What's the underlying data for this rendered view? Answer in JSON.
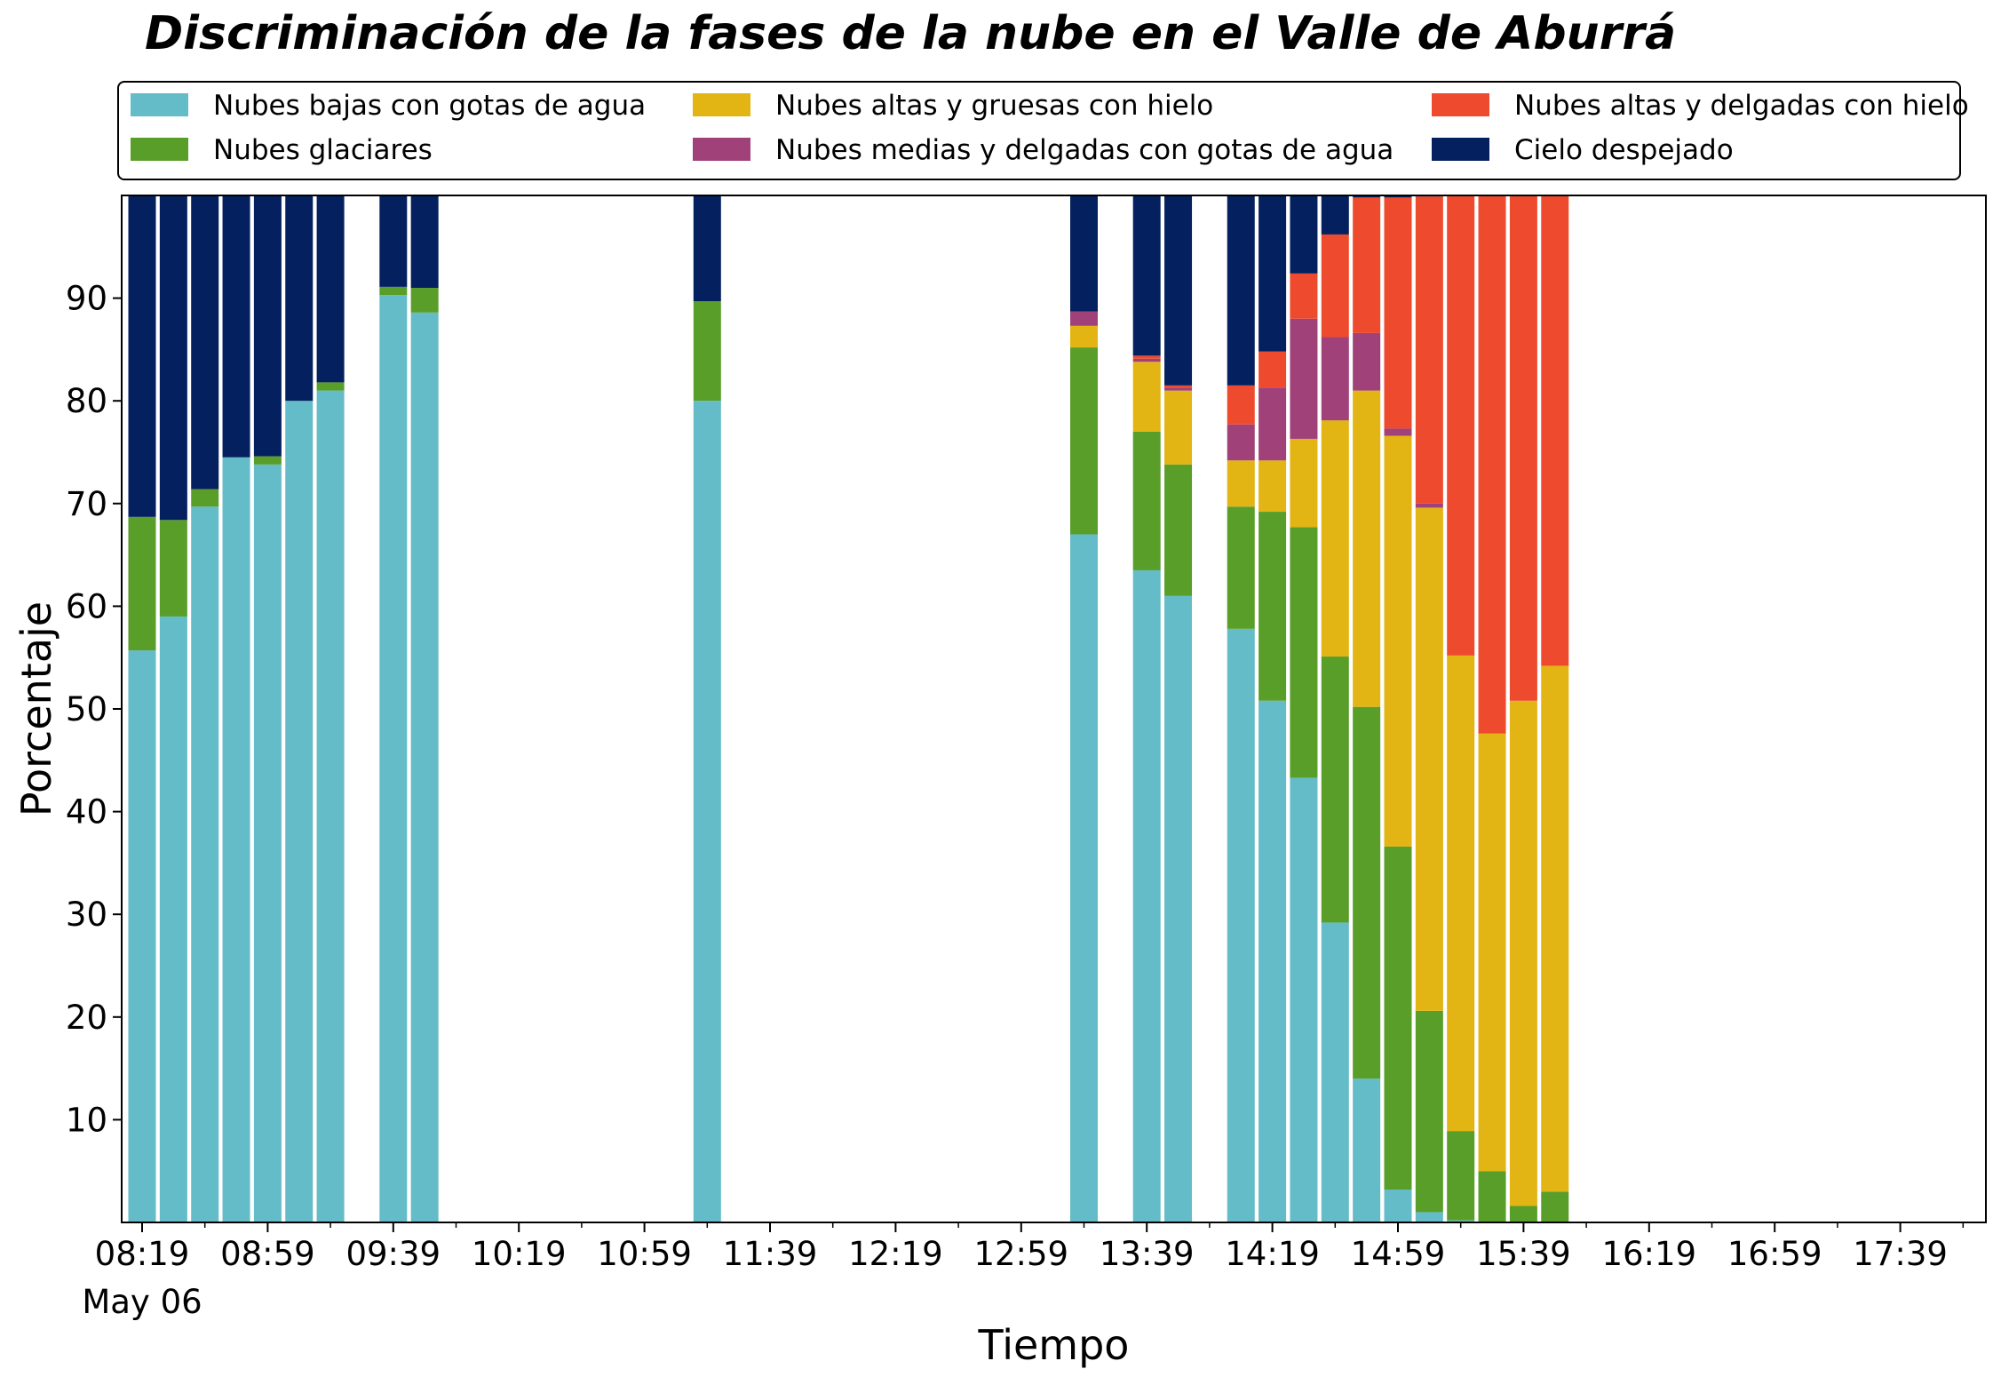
{
  "chart_data": {
    "type": "bar",
    "stacked": true,
    "title": "Discriminación de la fases de la nube en el Valle de Aburrá",
    "xlabel": "Tiempo",
    "ylabel": "Porcentaje",
    "ylim": [
      0,
      100
    ],
    "y_ticks": [
      10,
      20,
      30,
      40,
      50,
      60,
      70,
      80,
      90
    ],
    "x_ticks": [
      "08:19",
      "08:59",
      "09:39",
      "10:19",
      "10:59",
      "11:39",
      "12:19",
      "12:59",
      "13:39",
      "14:19",
      "14:59",
      "15:39",
      "16:19",
      "16:59",
      "17:39"
    ],
    "x_date_label": "May 06",
    "grid": false,
    "legend_position": "top",
    "categories": [
      "08:19",
      "08:29",
      "08:39",
      "08:49",
      "08:59",
      "09:09",
      "09:19",
      "09:29",
      "09:39",
      "09:49",
      "09:59",
      "10:09",
      "10:19",
      "10:29",
      "10:39",
      "10:49",
      "10:59",
      "11:09",
      "11:19",
      "11:29",
      "11:39",
      "11:49",
      "11:59",
      "12:09",
      "12:19",
      "12:29",
      "12:39",
      "12:49",
      "12:59",
      "13:09",
      "13:19",
      "13:29",
      "13:39",
      "13:49",
      "13:59",
      "14:09",
      "14:19",
      "14:29",
      "14:39",
      "14:49",
      "14:59",
      "15:09",
      "15:19",
      "15:29",
      "15:39",
      "15:49"
    ],
    "series": [
      {
        "name": "Nubes bajas con gotas de agua",
        "color": "#63bcc8",
        "values": [
          55.7,
          59,
          69.7,
          74.5,
          73.8,
          80,
          81,
          0,
          90.3,
          88.6,
          0,
          0,
          0,
          0,
          0,
          0,
          0,
          0,
          80,
          0,
          0,
          0,
          0,
          0,
          0,
          0,
          0,
          0,
          0,
          0,
          67,
          0,
          63.5,
          61,
          0,
          57.8,
          50.8,
          43.3,
          29.2,
          14,
          3.2,
          1,
          0.2,
          0,
          0,
          0
        ]
      },
      {
        "name": "Nubes glaciares",
        "color": "#5a9e2a",
        "values": [
          13,
          9.4,
          1.7,
          0,
          0.8,
          0,
          0.8,
          0,
          0.8,
          2.4,
          0,
          0,
          0,
          0,
          0,
          0,
          0,
          0,
          9.7,
          0,
          0,
          0,
          0,
          0,
          0,
          0,
          0,
          0,
          0,
          0,
          18.2,
          0,
          13.5,
          12.8,
          0,
          11.9,
          18.4,
          24.4,
          25.9,
          36.2,
          33.4,
          19.6,
          8.7,
          5,
          1.6,
          3
        ]
      },
      {
        "name": "Nubes altas y gruesas con hielo",
        "color": "#e2b414",
        "values": [
          0,
          0,
          0,
          0,
          0,
          0,
          0,
          0,
          0,
          0,
          0,
          0,
          0,
          0,
          0,
          0,
          0,
          0,
          0,
          0,
          0,
          0,
          0,
          0,
          0,
          0,
          0,
          0,
          0,
          0,
          2.1,
          0,
          6.8,
          7.2,
          0,
          4.5,
          5,
          8.6,
          23,
          30.8,
          40,
          49,
          46.3,
          42.6,
          49.2,
          51.2
        ]
      },
      {
        "name": "Nubes medias y delgadas con gotas de agua",
        "color": "#a0417a",
        "values": [
          0,
          0,
          0,
          0,
          0,
          0,
          0,
          0,
          0,
          0,
          0,
          0,
          0,
          0,
          0,
          0,
          0,
          0,
          0,
          0,
          0,
          0,
          0,
          0,
          0,
          0,
          0,
          0,
          0,
          0,
          1.4,
          0,
          0.3,
          0.3,
          0,
          3.5,
          7.1,
          11.7,
          8.1,
          5.6,
          0.7,
          0.4,
          0,
          0,
          0,
          0
        ]
      },
      {
        "name": "Nubes altas y delgadas con hielo",
        "color": "#ee4a2d",
        "values": [
          0,
          0,
          0,
          0,
          0,
          0,
          0,
          0,
          0,
          0,
          0,
          0,
          0,
          0,
          0,
          0,
          0,
          0,
          0,
          0,
          0,
          0,
          0,
          0,
          0,
          0,
          0,
          0,
          0,
          0,
          0,
          0,
          0.3,
          0.2,
          0,
          3.8,
          3.5,
          4.4,
          10,
          13.2,
          22.5,
          29.9,
          44.8,
          52.4,
          49.2,
          45.8
        ]
      },
      {
        "name": "Cielo despejado",
        "color": "#04205e",
        "values": [
          31.3,
          31.6,
          28.6,
          25.5,
          25.4,
          20,
          18.2,
          0,
          8.9,
          9,
          0,
          0,
          0,
          0,
          0,
          0,
          0,
          0,
          10.3,
          0,
          0,
          0,
          0,
          0,
          0,
          0,
          0,
          0,
          0,
          0,
          11.3,
          0,
          15.6,
          18.5,
          0,
          18.5,
          15.2,
          7.6,
          3.8,
          0.2,
          0.2,
          0.1,
          0,
          0,
          0,
          0
        ]
      }
    ]
  }
}
